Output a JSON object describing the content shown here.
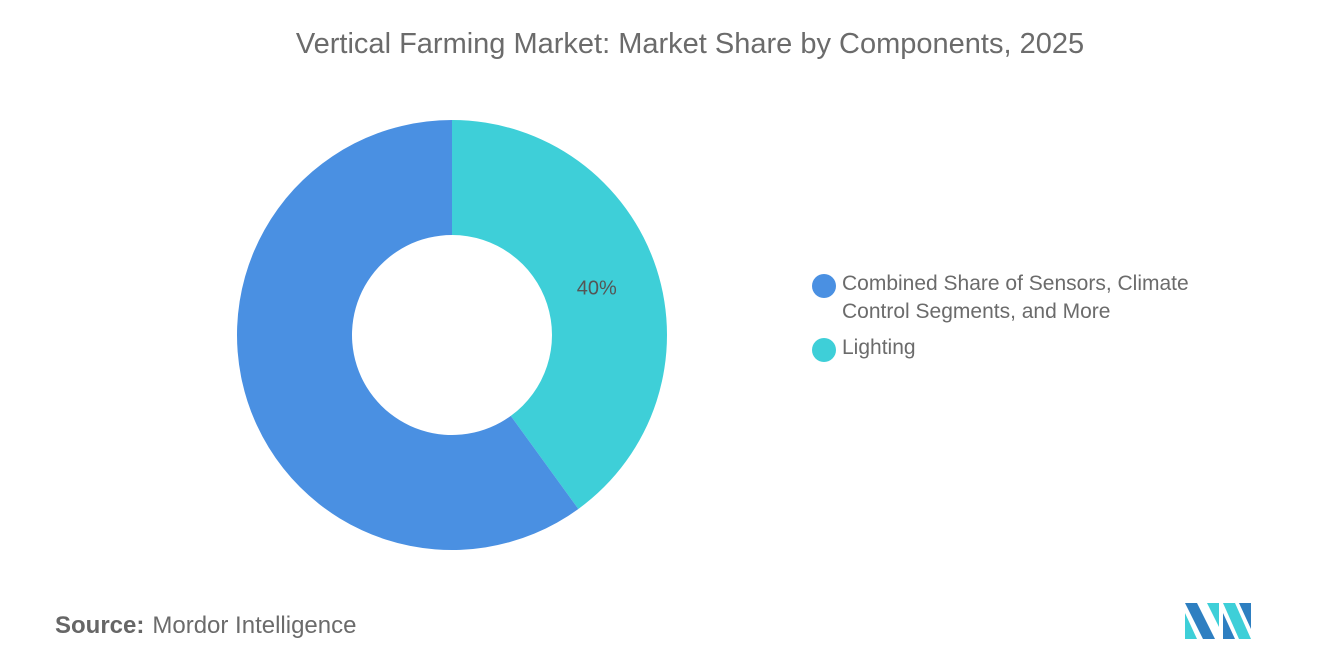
{
  "chart_data": {
    "type": "pie",
    "donut": true,
    "title": "Vertical Farming Market: Market Share by Components, 2025",
    "series": [
      {
        "name": "Lighting",
        "value": 40,
        "label": "40%",
        "color": "#3ecfd8"
      },
      {
        "name": "Combined Share of Sensors, Climate Control Segments, and More",
        "value": 60,
        "label": "",
        "color": "#4a90e2"
      }
    ],
    "legend_position": "right",
    "legend": [
      "Combined Share of Sensors, Climate Control Segments, and More",
      "Lighting"
    ]
  },
  "source": {
    "label": "Source:",
    "value": "Mordor Intelligence"
  },
  "logo": {
    "text": "Mordor Intelligence logo",
    "colors": [
      "#2e7fc1",
      "#3ecfd8"
    ]
  }
}
